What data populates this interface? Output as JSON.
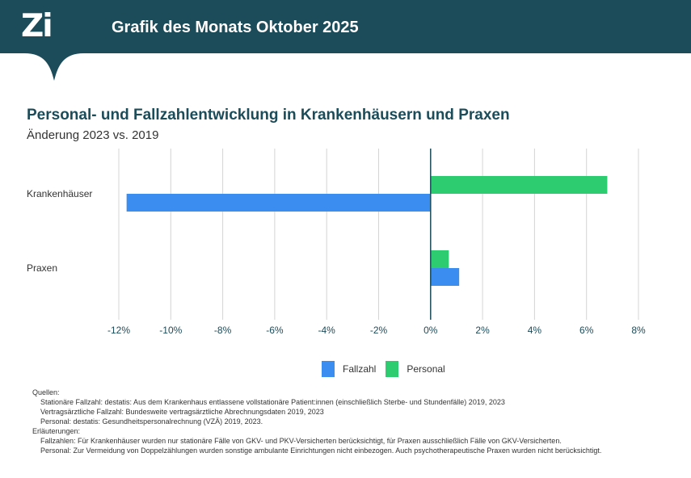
{
  "header": {
    "logo": "Zi",
    "title": "Grafik des Monats Oktober 2025",
    "bg_color": "#1c4b5a"
  },
  "chart_data": {
    "type": "bar",
    "orientation": "horizontal",
    "title": "Personal- und Fallzahlentwicklung in Krankenhäusern und Praxen",
    "subtitle": "Änderung 2023 vs. 2019",
    "categories": [
      "Krankenhäuser",
      "Praxen"
    ],
    "series": [
      {
        "name": "Personal",
        "color": "#2ecc71",
        "values": [
          6.8,
          0.7
        ]
      },
      {
        "name": "Fallzahl",
        "color": "#3b8ef0",
        "values": [
          -11.7,
          1.1
        ]
      }
    ],
    "xlim": [
      -12,
      8
    ],
    "xticks": [
      -12,
      -10,
      -8,
      -6,
      -4,
      -2,
      0,
      2,
      4,
      6,
      8
    ],
    "xtick_labels": [
      "-12%",
      "-10%",
      "-8%",
      "-6%",
      "-4%",
      "-2%",
      "0%",
      "2%",
      "4%",
      "6%",
      "8%"
    ],
    "grid": true,
    "legend_position": "bottom",
    "legend": [
      "Fallzahl",
      "Personal"
    ]
  },
  "footnotes": {
    "sources_label": "Quellen:",
    "sources": [
      "Stationäre Fallzahl: destatis: Aus dem Krankenhaus entlassene vollstationäre Patient:innen (einschließlich Sterbe- und Stundenfälle) 2019, 2023",
      "Vertragsärztliche Fallzahl: Bundesweite vertragsärztliche Abrechnungsdaten 2019, 2023",
      "Personal: destatis: Gesundheitspersonalrechnung (VZÄ) 2019, 2023."
    ],
    "notes_label": "Erläuterungen:",
    "notes": [
      "Fallzahlen: Für Krankenhäuser wurden nur stationäre Fälle von GKV- und PKV-Versicherten berücksichtigt, für Praxen ausschließlich Fälle von GKV-Versicherten.",
      "Personal: Zur Vermeidung von Doppelzählungen wurden sonstige ambulante Einrichtungen nicht einbezogen. Auch psychotherapeutische Praxen wurden nicht berücksichtigt."
    ]
  }
}
